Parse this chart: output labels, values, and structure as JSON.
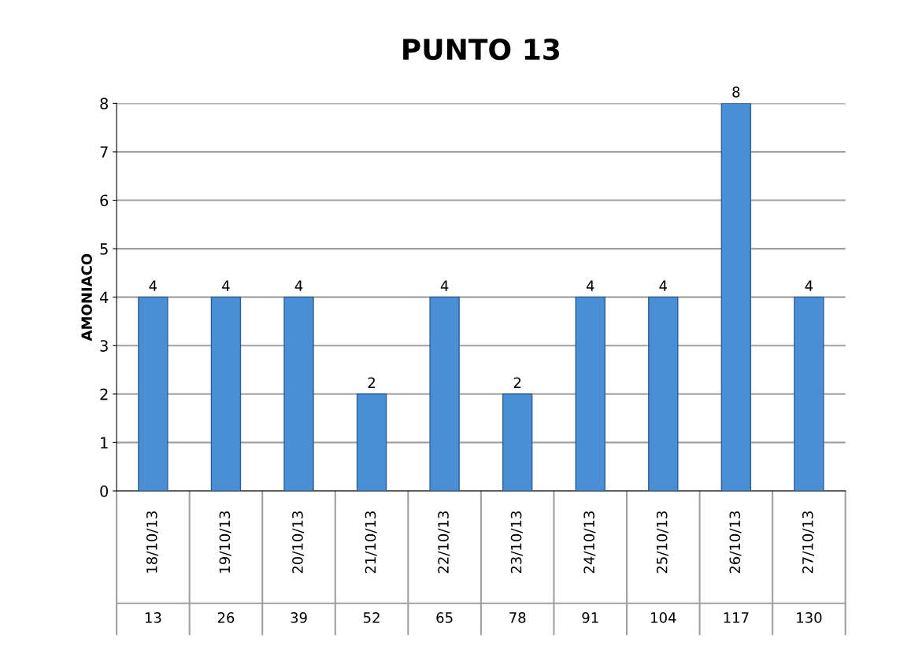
{
  "chart_data": {
    "type": "bar",
    "title": "PUNTO 13",
    "ylabel": "AMONIACO",
    "categories": [
      "18/10/13\n13",
      "19/10/13\n26",
      "20/10/13\n39",
      "21/10/13\n52",
      "22/10/13\n65",
      "23/10/13\n78",
      "24/10/13\n91",
      "25/10/13\n104",
      "26/10/13\n117",
      "27/10/13\n130"
    ],
    "values": [
      4,
      4,
      4,
      2,
      4,
      2,
      4,
      4,
      8,
      4
    ],
    "color": "#4a8fd6",
    "ylim": [
      0,
      8
    ],
    "yticks": [
      0,
      1,
      2,
      3,
      4,
      5,
      6,
      7,
      8
    ],
    "grid": "y",
    "data_labels": true
  }
}
